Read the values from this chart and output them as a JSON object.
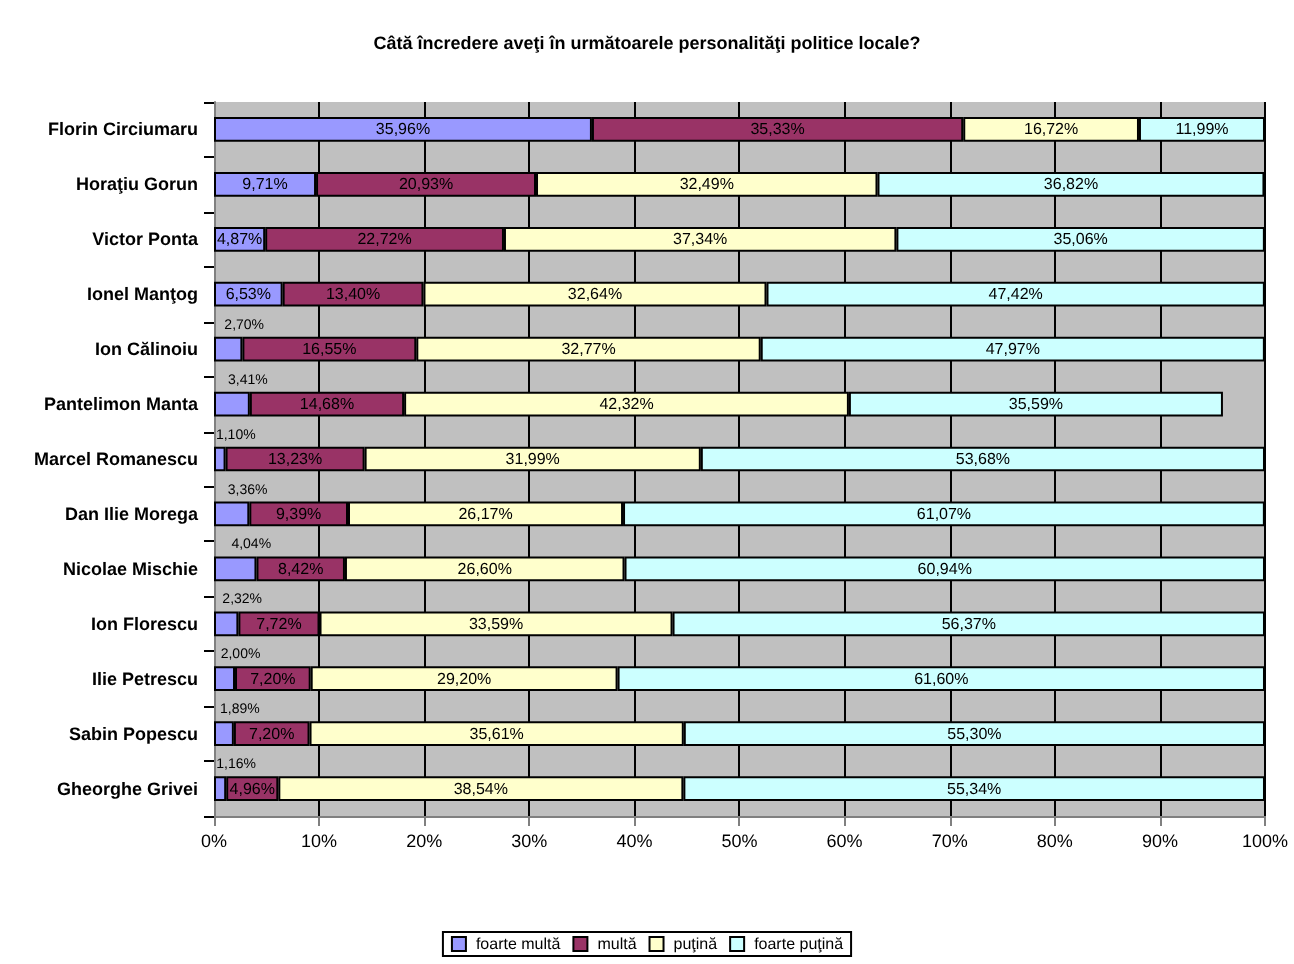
{
  "chart_data": {
    "type": "bar",
    "orientation": "horizontal",
    "stacked": true,
    "title": "Câtă încredere aveţi în următoarele personalităţi politice locale?",
    "categories": [
      "Florin Circiumaru",
      "Horaţiu Gorun",
      "Victor Ponta",
      "Ionel Manţog",
      "Ion Călinoiu",
      "Pantelimon Manta",
      "Marcel Romanescu",
      "Dan Ilie Morega",
      "Nicolae Mischie",
      "Ion Florescu",
      "Ilie Petrescu",
      "Sabin Popescu",
      "Gheorghe Grivei"
    ],
    "series": [
      {
        "name": "foarte multă",
        "color": "#9999ff",
        "values": [
          35.96,
          9.71,
          4.87,
          6.53,
          2.7,
          3.41,
          1.1,
          3.36,
          4.04,
          2.32,
          2.0,
          1.89,
          1.16
        ],
        "value_labels": [
          "35,96%",
          "9,71%",
          "4,87%",
          "6,53%",
          "2,70%",
          "3,41%",
          "1,10%",
          "3,36%",
          "4,04%",
          "2,32%",
          "2,00%",
          "1,89%",
          "1,16%"
        ]
      },
      {
        "name": "multă",
        "color": "#993366",
        "values": [
          35.33,
          20.93,
          22.72,
          13.4,
          16.55,
          14.68,
          13.23,
          9.39,
          8.42,
          7.72,
          7.2,
          7.2,
          4.96
        ],
        "value_labels": [
          "35,33%",
          "20,93%",
          "22,72%",
          "13,40%",
          "16,55%",
          "14,68%",
          "13,23%",
          "9,39%",
          "8,42%",
          "7,72%",
          "7,20%",
          "7,20%",
          "4,96%"
        ]
      },
      {
        "name": "puţină",
        "color": "#ffffcc",
        "values": [
          16.72,
          32.49,
          37.34,
          32.64,
          32.77,
          42.32,
          31.99,
          26.17,
          26.6,
          33.59,
          29.2,
          35.61,
          38.54
        ],
        "value_labels": [
          "16,72%",
          "32,49%",
          "37,34%",
          "32,64%",
          "32,77%",
          "42,32%",
          "31,99%",
          "26,17%",
          "26,60%",
          "33,59%",
          "29,20%",
          "35,61%",
          "38,54%"
        ]
      },
      {
        "name": "foarte puţină",
        "color": "#ccffff",
        "values": [
          11.99,
          36.82,
          35.06,
          47.42,
          47.97,
          35.59,
          53.68,
          61.07,
          60.94,
          56.37,
          61.6,
          55.3,
          55.34
        ],
        "value_labels": [
          "11,99%",
          "36,82%",
          "35,06%",
          "47,42%",
          "47,97%",
          "35,59%",
          "53,68%",
          "61,07%",
          "60,94%",
          "56,37%",
          "61,60%",
          "55,30%",
          "55,34%"
        ]
      }
    ],
    "xlim": [
      0,
      100
    ],
    "xticks": [
      {
        "value": 0,
        "label": "0%"
      },
      {
        "value": 10,
        "label": "10%"
      },
      {
        "value": 20,
        "label": "20%"
      },
      {
        "value": 30,
        "label": "30%"
      },
      {
        "value": 40,
        "label": "40%"
      },
      {
        "value": 50,
        "label": "50%"
      },
      {
        "value": 60,
        "label": "60%"
      },
      {
        "value": 70,
        "label": "70%"
      },
      {
        "value": 80,
        "label": "80%"
      },
      {
        "value": 90,
        "label": "90%"
      },
      {
        "value": 100,
        "label": "100%"
      }
    ],
    "grid": "x",
    "legend": "bottom"
  }
}
